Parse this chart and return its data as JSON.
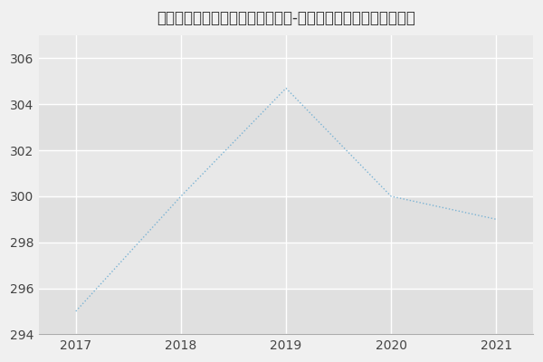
{
  "title": "南通大学医学院、药学院内科学（-历年复试）研究生录取分数线",
  "x": [
    2017,
    2018,
    2019,
    2020,
    2021
  ],
  "y": [
    295,
    300,
    304.7,
    300,
    299
  ],
  "line_color": "#7ab3d4",
  "bg_color": "#f0f0f0",
  "plot_bg_color": "#e8e8e8",
  "band_colors": [
    "#e0e0e0",
    "#e8e8e8"
  ],
  "grid_color": "#ffffff",
  "ylim": [
    294,
    307
  ],
  "xlim": [
    2016.65,
    2021.35
  ],
  "yticks": [
    294,
    296,
    298,
    300,
    302,
    304,
    306
  ],
  "xticks": [
    2017,
    2018,
    2019,
    2020,
    2021
  ],
  "title_fontsize": 12,
  "tick_fontsize": 10
}
